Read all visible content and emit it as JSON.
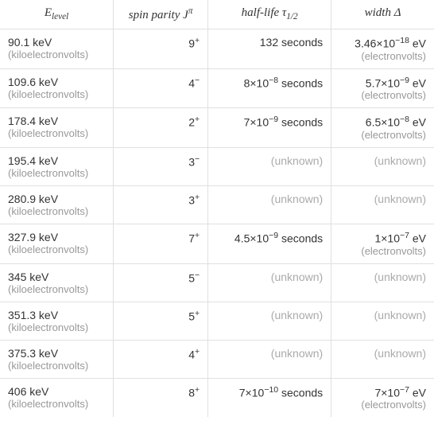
{
  "headers": {
    "energy": "level",
    "spin_prefix": "spin parity ",
    "halflife_prefix": "half-life ",
    "halflife_sub": "1/2",
    "width_prefix": "width Δ"
  },
  "rows": [
    {
      "energy": "90.1 keV",
      "energy_unit": "(kiloelectronvolts)",
      "spin_base": "9",
      "spin_sup": "+",
      "halflife": "132 seconds",
      "width_prefix": "3.46×10",
      "width_exp": "−18",
      "width_suffix": " eV",
      "width_unit": "(electronvolts)"
    },
    {
      "energy": "109.6 keV",
      "energy_unit": "(kiloelectronvolts)",
      "spin_base": "4",
      "spin_sup": "−",
      "halflife_prefix": "8×10",
      "halflife_exp": "−8",
      "halflife_suffix": " seconds",
      "width_prefix": "5.7×10",
      "width_exp": "−9",
      "width_suffix": " eV",
      "width_unit": "(electronvolts)"
    },
    {
      "energy": "178.4 keV",
      "energy_unit": "(kiloelectronvolts)",
      "spin_base": "2",
      "spin_sup": "+",
      "halflife_prefix": "7×10",
      "halflife_exp": "−9",
      "halflife_suffix": " seconds",
      "width_prefix": "6.5×10",
      "width_exp": "−8",
      "width_suffix": " eV",
      "width_unit": "(electronvolts)"
    },
    {
      "energy": "195.4 keV",
      "energy_unit": "(kiloelectronvolts)",
      "spin_base": "3",
      "spin_sup": "−",
      "halflife_unknown": "(unknown)",
      "width_unknown": "(unknown)"
    },
    {
      "energy": "280.9 keV",
      "energy_unit": "(kiloelectronvolts)",
      "spin_base": "3",
      "spin_sup": "+",
      "halflife_unknown": "(unknown)",
      "width_unknown": "(unknown)"
    },
    {
      "energy": "327.9 keV",
      "energy_unit": "(kiloelectronvolts)",
      "spin_base": "7",
      "spin_sup": "+",
      "halflife_prefix": "4.5×10",
      "halflife_exp": "−9",
      "halflife_suffix": " seconds",
      "width_prefix": "1×10",
      "width_exp": "−7",
      "width_suffix": " eV",
      "width_unit": "(electronvolts)"
    },
    {
      "energy": "345 keV",
      "energy_unit": "(kiloelectronvolts)",
      "spin_base": "5",
      "spin_sup": "−",
      "halflife_unknown": "(unknown)",
      "width_unknown": "(unknown)"
    },
    {
      "energy": "351.3 keV",
      "energy_unit": "(kiloelectronvolts)",
      "spin_base": "5",
      "spin_sup": "+",
      "halflife_unknown": "(unknown)",
      "width_unknown": "(unknown)"
    },
    {
      "energy": "375.3 keV",
      "energy_unit": "(kiloelectronvolts)",
      "spin_base": "4",
      "spin_sup": "+",
      "halflife_unknown": "(unknown)",
      "width_unknown": "(unknown)"
    },
    {
      "energy": "406 keV",
      "energy_unit": "(kiloelectronvolts)",
      "spin_base": "8",
      "spin_sup": "+",
      "halflife_prefix": "7×10",
      "halflife_exp": "−10",
      "halflife_suffix": " seconds",
      "width_prefix": "7×10",
      "width_exp": "−7",
      "width_suffix": " eV",
      "width_unit": "(electronvolts)"
    }
  ]
}
